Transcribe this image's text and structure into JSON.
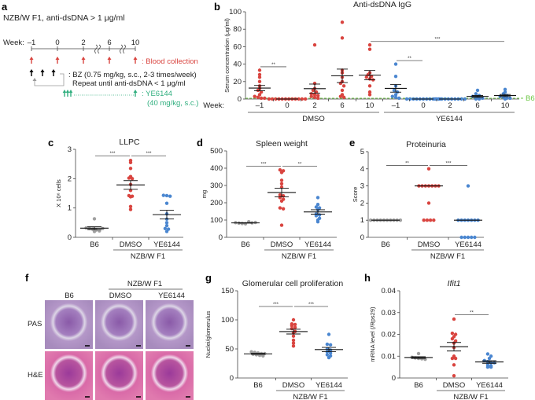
{
  "panel_labels": {
    "a": "a",
    "b": "b",
    "c": "c",
    "d": "d",
    "e": "e",
    "f": "f",
    "g": "g",
    "h": "h"
  },
  "panel_a": {
    "title": "NZB/W F1, anti-dsDNA > 1 μg/ml",
    "week_label": "Week:",
    "weeks": [
      "–1",
      "0",
      "2",
      "6",
      "10"
    ],
    "blood": ": Blood collection",
    "bz1": ": BZ (0.75 mg/kg, s.c., 2-3 times/week)",
    "bz2": "Repeat until anti-dsDNA < 1 μg/ml",
    "ye1": ": YE6144",
    "ye2": "(40 mg/kg, s.c.)",
    "colors": {
      "blood": "#d9443f",
      "bz": "#000000",
      "ye": "#2fae7e"
    }
  },
  "panel_f": {
    "group_label": "NZB/W F1",
    "columns": [
      "B6",
      "DMSO",
      "YE6144"
    ],
    "rows": [
      "PAS",
      "H&E"
    ]
  },
  "chart_data": [
    {
      "id": "b",
      "type": "scatter",
      "title": "Anti-dsDNA IgG",
      "ylabel": "Serum concentration (μg/ml)",
      "ylim": [
        0,
        100
      ],
      "yticks": [
        "0",
        "20",
        "40",
        "60",
        "80",
        "100"
      ],
      "week_label": "Week:",
      "baseline_label": "B6",
      "baseline_value": 0,
      "groups": [
        {
          "label": "–1",
          "color": "#d9443f",
          "values": [
            33,
            28,
            25,
            20,
            15,
            12,
            10,
            8,
            5,
            3,
            2,
            1,
            1
          ]
        },
        {
          "label": "0",
          "color": "#d9443f",
          "values": [
            0,
            0,
            0,
            0,
            0,
            0,
            0,
            0,
            0,
            0,
            0,
            0
          ]
        },
        {
          "label": "2",
          "color": "#d9443f",
          "values": [
            62,
            18,
            12,
            10,
            8,
            6,
            5,
            4,
            3,
            2,
            1
          ]
        },
        {
          "label": "6",
          "color": "#d9443f",
          "values": [
            88,
            70,
            33,
            30,
            25,
            20,
            18,
            15,
            10,
            5,
            3,
            2
          ]
        },
        {
          "label": "10",
          "color": "#d9443f",
          "values": [
            62,
            57,
            30,
            28,
            26,
            25,
            23,
            22,
            15,
            8,
            5
          ]
        },
        {
          "label": "–1",
          "color": "#4a86d0",
          "values": [
            40,
            26,
            15,
            10,
            8,
            5,
            3,
            2,
            1
          ]
        },
        {
          "label": "0",
          "color": "#4a86d0",
          "values": [
            0,
            0,
            0,
            0,
            0,
            0,
            0,
            0,
            0,
            0,
            0
          ]
        },
        {
          "label": "2",
          "color": "#4a86d0",
          "values": [
            0,
            0,
            0,
            0,
            0,
            0,
            0,
            0,
            0,
            0
          ]
        },
        {
          "label": "6",
          "color": "#4a86d0",
          "values": [
            10,
            6,
            4,
            3,
            2,
            1,
            1,
            0,
            0
          ]
        },
        {
          "label": "10",
          "color": "#4a86d0",
          "values": [
            11,
            8,
            6,
            4,
            3,
            2,
            1,
            1,
            0
          ]
        }
      ],
      "treatments": [
        {
          "label": "DMSO",
          "groups": [
            0,
            4
          ]
        },
        {
          "label": "YE6144",
          "groups": [
            5,
            9
          ]
        }
      ],
      "significance": [
        {
          "from": 0,
          "to": 1,
          "y": 37,
          "label": "**"
        },
        {
          "from": 4,
          "to": 9,
          "y": 66,
          "label": "***"
        },
        {
          "from": 5,
          "to": 6,
          "y": 44,
          "label": "**"
        }
      ]
    },
    {
      "id": "c",
      "type": "scatter",
      "title": "LLPC",
      "ylabel": "X 10⁶ cells",
      "ylim": [
        0,
        3
      ],
      "yticks": [
        "0",
        "1",
        "2",
        "3"
      ],
      "group_label": "NZB/W F1",
      "groups": [
        {
          "label": "B6",
          "color": "#a0a0a0",
          "values": [
            0.63,
            0.32,
            0.3,
            0.28,
            0.25,
            0.22,
            0.2,
            0.3
          ]
        },
        {
          "label": "DMSO",
          "color": "#d9443f",
          "values": [
            2.62,
            2.55,
            2.35,
            2.07,
            2.02,
            2.0,
            1.8,
            1.6,
            1.42,
            1.4,
            1.38,
            1.05,
            0.95
          ]
        },
        {
          "label": "YE6144",
          "color": "#4a86d0",
          "values": [
            1.43,
            1.42,
            1.4,
            1.16,
            0.8,
            0.62,
            0.5,
            0.4,
            0.3,
            0.28,
            0.2
          ]
        }
      ],
      "significance": [
        {
          "from": 0,
          "to": 1,
          "y": 2.78,
          "label": "***"
        },
        {
          "from": 1,
          "to": 2,
          "y": 2.78,
          "label": "***"
        }
      ]
    },
    {
      "id": "d",
      "type": "scatter",
      "title": "Spleen weight",
      "ylabel": "mg",
      "ylim": [
        0,
        500
      ],
      "yticks": [
        "0",
        "100",
        "200",
        "300",
        "400",
        "500"
      ],
      "group_label": "NZB/W F1",
      "groups": [
        {
          "label": "B6",
          "color": "#a0a0a0",
          "values": [
            85,
            82,
            80,
            78,
            90,
            84,
            86
          ]
        },
        {
          "label": "DMSO",
          "color": "#d9443f",
          "values": [
            390,
            385,
            375,
            330,
            310,
            290,
            245,
            240,
            230,
            220,
            210,
            170,
            165,
            70
          ]
        },
        {
          "label": "YE6144",
          "color": "#4a86d0",
          "values": [
            230,
            190,
            175,
            170,
            160,
            135,
            130,
            125,
            110,
            90,
            100
          ]
        }
      ],
      "significance": [
        {
          "from": 0,
          "to": 1,
          "y": 412,
          "label": "***"
        },
        {
          "from": 1,
          "to": 2,
          "y": 412,
          "label": "**"
        }
      ]
    },
    {
      "id": "e",
      "type": "scatter",
      "title": "Proteinuria",
      "ylabel": "Score",
      "ylim": [
        0,
        5
      ],
      "yticks": [
        "0",
        "1",
        "2",
        "3",
        "4",
        "5"
      ],
      "group_label": "NZB/W F1",
      "center": "median",
      "groups": [
        {
          "label": "B6",
          "color": "#a0a0a0",
          "values": [
            1,
            1,
            1,
            1,
            1,
            1,
            1,
            1,
            1,
            1
          ]
        },
        {
          "label": "DMSO",
          "color": "#d9443f",
          "values": [
            4,
            3,
            3,
            3,
            3,
            3,
            3,
            3,
            2,
            1,
            1,
            1,
            1
          ]
        },
        {
          "label": "YE6144",
          "color": "#4a86d0",
          "values": [
            3,
            1,
            1,
            1,
            1,
            1,
            1,
            1,
            0,
            0,
            0,
            0,
            0
          ]
        }
      ],
      "significance": [
        {
          "from": 0,
          "to": 1,
          "y": 4.2,
          "label": "**"
        },
        {
          "from": 1,
          "to": 2,
          "y": 4.2,
          "label": "***"
        }
      ]
    },
    {
      "id": "g",
      "type": "scatter",
      "title": "Glomerular cell proliferation",
      "ylabel": "Nuclei/glomerulus",
      "ylim": [
        0,
        150
      ],
      "yticks": [
        "0",
        "50",
        "100",
        "150"
      ],
      "group_label": "NZB/W F1",
      "groups": [
        {
          "label": "B6",
          "color": "#a0a0a0",
          "values": [
            45,
            44,
            43,
            42,
            42,
            41,
            40,
            39,
            38
          ]
        },
        {
          "label": "DMSO",
          "color": "#d9443f",
          "values": [
            100,
            93,
            92,
            90,
            87,
            85,
            80,
            78,
            72,
            65,
            60,
            55
          ]
        },
        {
          "label": "YE6144",
          "color": "#4a86d0",
          "values": [
            75,
            58,
            57,
            50,
            48,
            45,
            43,
            40,
            38,
            35
          ]
        }
      ],
      "significance": [
        {
          "from": 0,
          "to": 1,
          "y": 123,
          "label": "***"
        },
        {
          "from": 1,
          "to": 2,
          "y": 123,
          "label": "***"
        }
      ]
    },
    {
      "id": "h",
      "type": "scatter",
      "title": "Ifit1",
      "title_italic": true,
      "ylabel": "mRNA level (/Rps29)",
      "ylim": [
        0,
        0.04
      ],
      "yticks": [
        "0",
        "0.01",
        "0.02",
        "0.03",
        "0.04"
      ],
      "group_label": "NZB/W F1",
      "groups": [
        {
          "label": "B6",
          "color": "#a0a0a0",
          "values": [
            0.0112,
            0.0095,
            0.0092,
            0.009,
            0.0088,
            0.0086
          ]
        },
        {
          "label": "DMSO",
          "color": "#d9443f",
          "values": [
            0.027,
            0.0205,
            0.02,
            0.019,
            0.018,
            0.017,
            0.016,
            0.014,
            0.01,
            0.009,
            0.009,
            0.006,
            0.001
          ]
        },
        {
          "label": "YE6144",
          "color": "#4a86d0",
          "values": [
            0.011,
            0.01,
            0.009,
            0.008,
            0.0075,
            0.007,
            0.007,
            0.006,
            0.0055,
            0.005,
            0.005
          ]
        }
      ],
      "significance": [
        {
          "from": 1,
          "to": 2,
          "y": 0.029,
          "label": "**"
        }
      ]
    }
  ]
}
